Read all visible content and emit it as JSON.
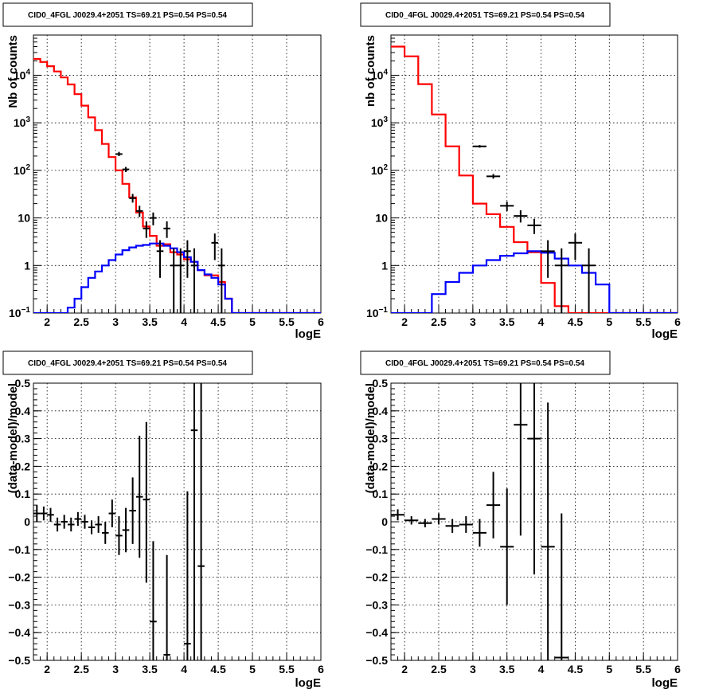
{
  "chart_data": [
    {
      "type": "line",
      "title": "CID0_4FGL J0029.4+2051 TS=69.21 PS=0.54 PS=0.54",
      "xlabel": "logE",
      "ylabel": "Nb of counts",
      "xlim": [
        1.8,
        6.0
      ],
      "ylim": [
        0.1,
        70000
      ],
      "yscale": "log",
      "grid": true,
      "xticks": [
        "2",
        "2.5",
        "3",
        "3.5",
        "4",
        "4.5",
        "5",
        "5.5",
        "6"
      ],
      "yticks": [
        {
          "v": 0.1,
          "base": "10",
          "exp": "−1"
        },
        {
          "v": 1,
          "label": "1"
        },
        {
          "v": 10,
          "label": "10"
        },
        {
          "v": 100,
          "base": "10",
          "exp": "2"
        },
        {
          "v": 1000,
          "base": "10",
          "exp": "3"
        },
        {
          "v": 10000,
          "base": "10",
          "exp": "4"
        }
      ],
      "bin_edges": [
        1.8,
        1.9,
        2.0,
        2.1,
        2.2,
        2.3,
        2.4,
        2.5,
        2.6,
        2.7,
        2.8,
        2.9,
        3.0,
        3.1,
        3.2,
        3.3,
        3.4,
        3.5,
        3.6,
        3.7,
        3.8,
        3.9,
        4.0,
        4.1,
        4.2,
        4.3,
        4.4,
        4.5,
        4.6,
        4.7,
        4.8,
        4.9,
        5.0,
        5.1,
        5.2,
        5.3,
        5.4,
        5.5,
        5.6,
        5.7,
        5.8,
        5.9,
        6.0
      ],
      "series": [
        {
          "role": "model-total",
          "color": "#ff0000",
          "values": [
            22000,
            19000,
            15500,
            12000,
            9000,
            6400,
            4000,
            2300,
            1300,
            700,
            360,
            190,
            100,
            52,
            27,
            13,
            6.6,
            4.2,
            2.6,
            2.8,
            1.9,
            1.7,
            1.35,
            1.2,
            0.8,
            0.62,
            0.62,
            0.45,
            0.2,
            0.1,
            0.1,
            0.1,
            0.1,
            0.1,
            0.1,
            0.1,
            0.1,
            0.1,
            0.1,
            0.1,
            0.1,
            0.1
          ]
        },
        {
          "role": "model-source",
          "color": "#0000ff",
          "values": [
            0.1,
            0.1,
            0.1,
            0.1,
            0.1,
            0.13,
            0.2,
            0.35,
            0.55,
            0.75,
            1.0,
            1.3,
            1.7,
            2.1,
            2.4,
            2.6,
            2.7,
            2.9,
            2.9,
            2.6,
            2.3,
            1.9,
            1.5,
            1.2,
            0.8,
            0.65,
            0.55,
            0.4,
            0.2,
            0.1,
            0.1,
            0.1,
            0.1,
            0.1,
            0.1,
            0.1,
            0.1,
            0.1,
            0.1,
            0.1,
            0.1,
            0.1
          ]
        },
        {
          "role": "data",
          "color": "#000000",
          "points": [
            {
              "x": 3.05,
              "y": 220,
              "ylo": 200,
              "yhi": 245
            },
            {
              "x": 3.15,
              "y": 105,
              "ylo": 92,
              "yhi": 118
            },
            {
              "x": 3.25,
              "y": 26,
              "ylo": 21,
              "yhi": 32
            },
            {
              "x": 3.35,
              "y": 14,
              "ylo": 10.5,
              "yhi": 18
            },
            {
              "x": 3.45,
              "y": 6,
              "ylo": 3.8,
              "yhi": 8.5
            },
            {
              "x": 3.55,
              "y": 10,
              "ylo": 7,
              "yhi": 13
            },
            {
              "x": 3.65,
              "y": 2,
              "ylo": 0.55,
              "yhi": 3.4
            },
            {
              "x": 3.75,
              "y": 6,
              "ylo": 3.8,
              "yhi": 8.5
            },
            {
              "x": 3.85,
              "y": 1,
              "ylo": 0.1,
              "yhi": 2.3
            },
            {
              "x": 3.95,
              "y": 1,
              "ylo": 0.1,
              "yhi": 2.3
            },
            {
              "x": 4.05,
              "y": 2,
              "ylo": 0.55,
              "yhi": 3.4
            },
            {
              "x": 4.15,
              "y": 1,
              "ylo": 0.1,
              "yhi": 2.3
            },
            {
              "x": 4.45,
              "y": 3,
              "ylo": 1.3,
              "yhi": 4.7
            },
            {
              "x": 4.55,
              "y": 1,
              "ylo": 0.1,
              "yhi": 2.3
            }
          ]
        }
      ]
    },
    {
      "type": "line",
      "title": "CID0_4FGL J0029.4+2051 TS=69.21 PS=0.54 PS=0.54",
      "xlabel": "logE",
      "ylabel": "nb of counts",
      "xlim": [
        1.8,
        6.0
      ],
      "ylim": [
        0.1,
        70000
      ],
      "yscale": "log",
      "grid": true,
      "xticks": [
        "2",
        "2.5",
        "3",
        "3.5",
        "4",
        "4.5",
        "5",
        "5.5",
        "6"
      ],
      "yticks": [
        {
          "v": 0.1,
          "base": "10",
          "exp": "−1"
        },
        {
          "v": 1,
          "label": "1"
        },
        {
          "v": 10,
          "label": "10"
        },
        {
          "v": 100,
          "base": "10",
          "exp": "2"
        },
        {
          "v": 1000,
          "base": "10",
          "exp": "3"
        },
        {
          "v": 10000,
          "base": "10",
          "exp": "4"
        }
      ],
      "bin_edges": [
        1.8,
        2.0,
        2.2,
        2.4,
        2.6,
        2.8,
        3.0,
        3.2,
        3.4,
        3.6,
        3.8,
        4.0,
        4.2,
        4.4,
        4.6,
        4.8,
        5.0,
        5.2,
        5.4,
        5.6,
        5.8,
        6.0
      ],
      "series": [
        {
          "role": "model-total",
          "color": "#ff0000",
          "values": [
            40000,
            25000,
            6500,
            1500,
            320,
            78,
            20,
            12,
            6.5,
            3.1,
            1.9,
            0.43,
            0.14,
            0.1,
            0.1,
            0.1,
            0.1,
            0.1,
            0.1,
            0.1,
            0.1
          ]
        },
        {
          "role": "model-source",
          "color": "#0000ff",
          "values": [
            0.1,
            0.1,
            0.1,
            0.25,
            0.45,
            0.7,
            1.0,
            1.3,
            1.6,
            1.8,
            2.0,
            1.85,
            1.4,
            1.0,
            0.7,
            0.4,
            0.1,
            0.1,
            0.1,
            0.1,
            0.1
          ]
        },
        {
          "role": "data",
          "color": "#000000",
          "values": [
            0.1,
            0.1,
            0.1,
            0.1,
            0.1,
            0.1,
            0.1,
            0.1,
            0.1,
            0.1,
            0.1,
            0.1,
            0.1,
            0.1,
            0.1,
            0.1,
            0.1,
            0.1,
            0.1,
            0.1,
            0.1
          ],
          "points": [
            {
              "x": 3.1,
              "y": 320,
              "ylo": 300,
              "yhi": 340
            },
            {
              "x": 3.3,
              "y": 75,
              "ylo": 67,
              "yhi": 84
            },
            {
              "x": 3.5,
              "y": 18,
              "ylo": 14,
              "yhi": 22
            },
            {
              "x": 3.7,
              "y": 11,
              "ylo": 8,
              "yhi": 14.5
            },
            {
              "x": 3.9,
              "y": 7,
              "ylo": 4.6,
              "yhi": 9.6
            },
            {
              "x": 4.1,
              "y": 2,
              "ylo": 0.55,
              "yhi": 3.4
            },
            {
              "x": 4.3,
              "y": 1,
              "ylo": 0.1,
              "yhi": 2.3
            },
            {
              "x": 4.5,
              "y": 3,
              "ylo": 1.3,
              "yhi": 4.7
            },
            {
              "x": 4.7,
              "y": 1,
              "ylo": 0.1,
              "yhi": 2.3
            }
          ]
        }
      ]
    },
    {
      "type": "scatter",
      "title": "CID0_4FGL J0029.4+2051 TS=69.21 PS=0.54 PS=0.54",
      "xlabel": "logE",
      "ylabel": "(data-model)/model",
      "xlim": [
        1.8,
        6.0
      ],
      "ylim": [
        -0.5,
        0.5
      ],
      "yscale": "linear",
      "grid": true,
      "xticks": [
        "2",
        "2.5",
        "3",
        "3.5",
        "4",
        "4.5",
        "5",
        "5.5",
        "6"
      ],
      "yticks": [
        "−0.5",
        "−0.4",
        "−0.3",
        "−0.2",
        "−0.1",
        "0",
        "0.1",
        "0.2",
        "0.3",
        "0.4",
        "0.5"
      ],
      "xerr": 0.05,
      "points": [
        {
          "x": 1.85,
          "y": 0.03,
          "ylo": 0.0,
          "yhi": 0.06
        },
        {
          "x": 1.95,
          "y": 0.03,
          "ylo": 0.005,
          "yhi": 0.055
        },
        {
          "x": 2.05,
          "y": 0.025,
          "ylo": 0.0,
          "yhi": 0.05
        },
        {
          "x": 2.15,
          "y": -0.01,
          "ylo": -0.035,
          "yhi": 0.015
        },
        {
          "x": 2.25,
          "y": 0.0,
          "ylo": -0.025,
          "yhi": 0.025
        },
        {
          "x": 2.35,
          "y": -0.01,
          "ylo": -0.035,
          "yhi": 0.015
        },
        {
          "x": 2.45,
          "y": 0.01,
          "ylo": -0.015,
          "yhi": 0.035
        },
        {
          "x": 2.55,
          "y": 0.0,
          "ylo": -0.025,
          "yhi": 0.025
        },
        {
          "x": 2.65,
          "y": -0.02,
          "ylo": -0.045,
          "yhi": 0.005
        },
        {
          "x": 2.75,
          "y": -0.01,
          "ylo": -0.04,
          "yhi": 0.02
        },
        {
          "x": 2.85,
          "y": -0.04,
          "ylo": -0.08,
          "yhi": 0.0
        },
        {
          "x": 2.95,
          "y": 0.03,
          "ylo": -0.02,
          "yhi": 0.08
        },
        {
          "x": 3.05,
          "y": -0.05,
          "ylo": -0.12,
          "yhi": 0.02
        },
        {
          "x": 3.15,
          "y": -0.03,
          "ylo": -0.11,
          "yhi": 0.05
        },
        {
          "x": 3.25,
          "y": 0.04,
          "ylo": -0.08,
          "yhi": 0.16
        },
        {
          "x": 3.35,
          "y": 0.09,
          "ylo": -0.13,
          "yhi": 0.31
        },
        {
          "x": 3.45,
          "y": 0.08,
          "ylo": -0.22,
          "yhi": 0.36
        },
        {
          "x": 3.55,
          "y": -0.36,
          "ylo": -0.5,
          "yhi": -0.07
        },
        {
          "x": 3.75,
          "y": -0.48,
          "ylo": -0.5,
          "yhi": -0.12
        },
        {
          "x": 4.05,
          "y": -0.44,
          "ylo": -0.5,
          "yhi": 0.11
        },
        {
          "x": 4.15,
          "y": 0.33,
          "ylo": -0.5,
          "yhi": 0.5
        },
        {
          "x": 4.25,
          "y": -0.16,
          "ylo": -0.5,
          "yhi": 0.5
        }
      ]
    },
    {
      "type": "scatter",
      "title": "CID0_4FGL J0029.4+2051 TS=69.21 PS=0.54 PS=0.54",
      "xlabel": "logE",
      "ylabel": "(data-model)/model",
      "xlim": [
        1.8,
        6.0
      ],
      "ylim": [
        -0.5,
        0.5
      ],
      "yscale": "linear",
      "grid": true,
      "xticks": [
        "2",
        "2.5",
        "3",
        "3.5",
        "4",
        "4.5",
        "5",
        "5.5",
        "6"
      ],
      "yticks": [
        "−0.5",
        "−0.4",
        "−0.3",
        "−0.2",
        "−0.1",
        "0",
        "0.1",
        "0.2",
        "0.3",
        "0.4",
        "0.5"
      ],
      "xerr": 0.1,
      "points": [
        {
          "x": 1.9,
          "y": 0.025,
          "ylo": 0.005,
          "yhi": 0.045
        },
        {
          "x": 2.1,
          "y": 0.005,
          "ylo": -0.01,
          "yhi": 0.02
        },
        {
          "x": 2.3,
          "y": -0.005,
          "ylo": -0.02,
          "yhi": 0.01
        },
        {
          "x": 2.5,
          "y": 0.01,
          "ylo": -0.01,
          "yhi": 0.03
        },
        {
          "x": 2.7,
          "y": -0.015,
          "ylo": -0.04,
          "yhi": 0.01
        },
        {
          "x": 2.9,
          "y": -0.01,
          "ylo": -0.04,
          "yhi": 0.02
        },
        {
          "x": 3.1,
          "y": -0.04,
          "ylo": -0.09,
          "yhi": 0.01
        },
        {
          "x": 3.3,
          "y": 0.06,
          "ylo": -0.06,
          "yhi": 0.18
        },
        {
          "x": 3.5,
          "y": -0.09,
          "ylo": -0.3,
          "yhi": 0.12
        },
        {
          "x": 3.7,
          "y": 0.35,
          "ylo": -0.05,
          "yhi": 0.5
        },
        {
          "x": 3.9,
          "y": 0.3,
          "ylo": -0.19,
          "yhi": 0.5
        },
        {
          "x": 4.1,
          "y": -0.09,
          "ylo": -0.5,
          "yhi": 0.43
        },
        {
          "x": 4.3,
          "y": -0.49,
          "ylo": -0.5,
          "yhi": 0.03
        }
      ]
    }
  ]
}
